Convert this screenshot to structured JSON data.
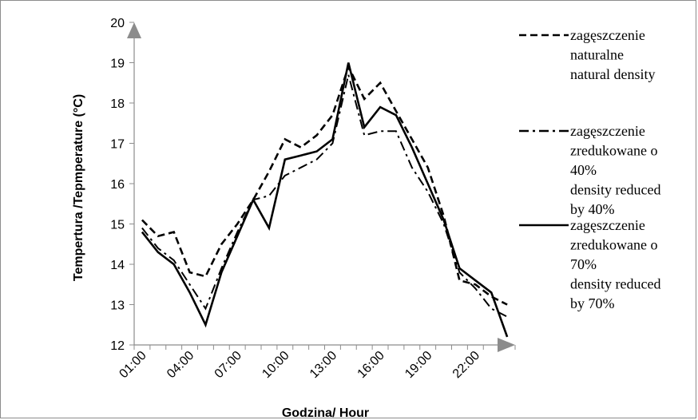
{
  "chart_data": {
    "type": "line",
    "x": [
      "01:00",
      "02:00",
      "03:00",
      "04:00",
      "05:00",
      "06:00",
      "07:00",
      "08:00",
      "09:00",
      "10:00",
      "11:00",
      "12:00",
      "13:00",
      "14:00",
      "15:00",
      "16:00",
      "17:00",
      "18:00",
      "19:00",
      "20:00",
      "21:00",
      "22:00",
      "23:00",
      "24:00"
    ],
    "x_tick_labels": [
      "01:00",
      "04:00",
      "07:00",
      "10:00",
      "13:00",
      "16:00",
      "19:00",
      "22:00"
    ],
    "y_tick_labels": [
      "12",
      "13",
      "14",
      "15",
      "16",
      "17",
      "18",
      "19",
      "20"
    ],
    "ylim": [
      12,
      20
    ],
    "xlabel": "Godzina/ Hour",
    "ylabel": "Tempertura /Tepmperature (°C)",
    "grid": false,
    "legend_position": "right",
    "series": [
      {
        "name": "zagęszczenie naturalne natural density",
        "legend_lines": [
          "zagęszczenie",
          "naturalne",
          "natural density"
        ],
        "style": "dashed",
        "values": [
          15.1,
          14.7,
          14.8,
          13.8,
          13.7,
          14.5,
          15.0,
          15.6,
          16.3,
          17.1,
          16.9,
          17.2,
          17.7,
          18.9,
          18.1,
          18.5,
          17.8,
          17.1,
          16.4,
          15.2,
          13.6,
          13.5,
          13.2,
          13.0
        ]
      },
      {
        "name": "zagęszczenie zredukowane o 40% density reduced by 40%",
        "legend_lines": [
          "zagęszczenie",
          "zredukowane o",
          "40%",
          "density reduced",
          "by 40%"
        ],
        "style": "dashdot",
        "values": [
          14.9,
          14.4,
          14.1,
          13.5,
          12.9,
          13.9,
          14.8,
          15.6,
          15.7,
          16.2,
          16.4,
          16.6,
          17.0,
          18.7,
          17.2,
          17.3,
          17.3,
          16.4,
          15.8,
          15.0,
          13.8,
          13.4,
          12.9,
          12.7
        ]
      },
      {
        "name": "zagęszczenie zredukowane o 70% density reduced by 70%",
        "legend_lines": [
          "zagęszczenie",
          "zredukowane o",
          "70%",
          "density reduced",
          "by 70%"
        ],
        "style": "solid",
        "values": [
          14.8,
          14.3,
          14.0,
          13.3,
          12.5,
          13.8,
          14.7,
          15.6,
          14.9,
          16.6,
          16.7,
          16.8,
          17.1,
          19.0,
          17.4,
          17.9,
          17.7,
          16.9,
          16.0,
          15.1,
          13.9,
          13.6,
          13.3,
          12.2
        ]
      }
    ]
  }
}
